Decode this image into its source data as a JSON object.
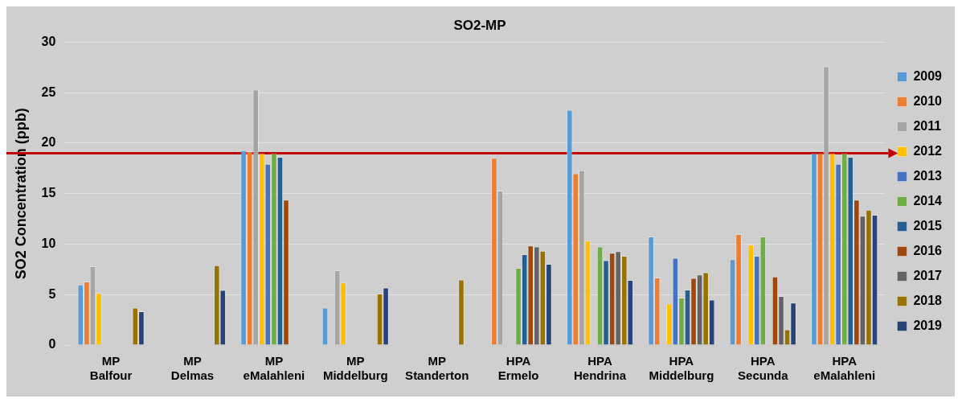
{
  "chart_data": {
    "type": "bar",
    "title": "SO2-MP",
    "ylabel": "SO2 Concentration (ppb)",
    "categories": [
      "MP\nBalfour",
      "MP\nDelmas",
      "MP\neMalahleni",
      "MP\nMiddelburg",
      "MP\nStanderton",
      "HPA\nErmelo",
      "HPA\nHendrina",
      "HPA\nMiddelburg",
      "HPA\nSecunda",
      "HPA\neMalahleni"
    ],
    "series": [
      {
        "name": "2009",
        "color": "#5b9bd5",
        "values": [
          6.0,
          null,
          19.3,
          3.7,
          null,
          null,
          23.3,
          10.75,
          8.5,
          19.0
        ]
      },
      {
        "name": "2010",
        "color": "#ed7d31",
        "values": [
          6.3,
          null,
          19.2,
          null,
          null,
          18.55,
          17.0,
          6.7,
          11.0,
          19.0
        ]
      },
      {
        "name": "2011",
        "color": "#a5a5a5",
        "values": [
          7.8,
          null,
          25.3,
          7.4,
          null,
          15.3,
          17.3,
          null,
          null,
          27.6
        ]
      },
      {
        "name": "2012",
        "color": "#ffc000",
        "values": [
          5.15,
          null,
          19.0,
          6.2,
          null,
          null,
          10.35,
          4.1,
          9.95,
          19.0
        ]
      },
      {
        "name": "2013",
        "color": "#4472c4",
        "values": [
          null,
          null,
          17.95,
          null,
          null,
          null,
          null,
          8.65,
          8.85,
          17.95
        ]
      },
      {
        "name": "2014",
        "color": "#70ad47",
        "values": [
          null,
          null,
          19.0,
          null,
          null,
          7.65,
          9.75,
          4.7,
          10.75,
          19.0
        ]
      },
      {
        "name": "2015",
        "color": "#255e91",
        "values": [
          null,
          null,
          18.65,
          null,
          null,
          9.0,
          8.4,
          5.5,
          null,
          18.65
        ]
      },
      {
        "name": "2016",
        "color": "#9e480e",
        "values": [
          null,
          null,
          14.4,
          null,
          null,
          9.85,
          9.15,
          6.65,
          6.8,
          14.4
        ]
      },
      {
        "name": "2017",
        "color": "#636363",
        "values": [
          null,
          null,
          null,
          null,
          null,
          9.75,
          9.3,
          7.0,
          4.85,
          12.8
        ]
      },
      {
        "name": "2018",
        "color": "#997300",
        "values": [
          3.7,
          7.9,
          null,
          5.1,
          6.5,
          9.35,
          8.85,
          7.2,
          1.55,
          13.4
        ]
      },
      {
        "name": "2019",
        "color": "#264478",
        "values": [
          3.35,
          5.45,
          null,
          5.7,
          null,
          8.05,
          6.45,
          4.5,
          4.2,
          12.9
        ]
      }
    ],
    "ylim": [
      0,
      30
    ],
    "yticks": [
      0,
      5,
      10,
      15,
      20,
      25,
      30
    ],
    "grid": "y",
    "legend": "right",
    "ref_lines": [
      {
        "axis": "y",
        "value": 19,
        "color": "#c00000"
      }
    ]
  }
}
